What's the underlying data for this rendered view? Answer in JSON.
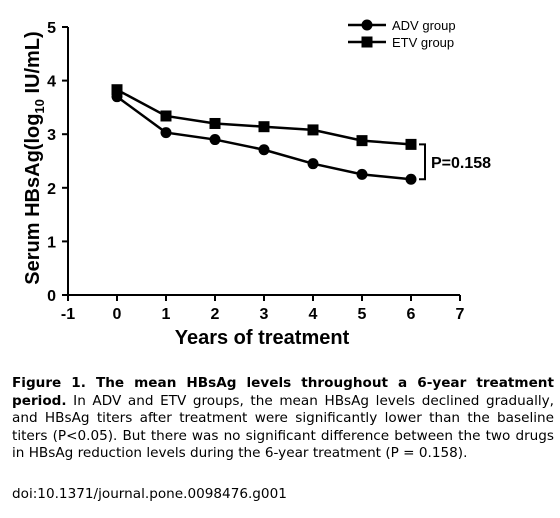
{
  "chart_data": {
    "type": "line",
    "xlabel": "Years of treatment",
    "ylabel_main": "Serum HBsAg(log",
    "ylabel_sub": "10",
    "ylabel_end": " IU/mL)",
    "xlim": [
      -1,
      7
    ],
    "ylim": [
      0,
      5
    ],
    "x_ticks": [
      -1,
      0,
      1,
      2,
      3,
      4,
      5,
      6,
      7
    ],
    "y_ticks": [
      0,
      1,
      2,
      3,
      4,
      5
    ],
    "x": [
      0,
      1,
      2,
      3,
      4,
      5,
      6
    ],
    "series": [
      {
        "name": "ADV group",
        "marker": "circle",
        "values": [
          3.7,
          3.03,
          2.9,
          2.71,
          2.45,
          2.25,
          2.16
        ]
      },
      {
        "name": "ETV group",
        "marker": "square",
        "values": [
          3.83,
          3.34,
          3.2,
          3.14,
          3.08,
          2.88,
          2.81
        ]
      }
    ],
    "annotation": {
      "text": "P=0.158",
      "x": 6
    },
    "legend_position": "top-right",
    "grid": false
  },
  "caption": {
    "lead": "Figure 1. The mean HBsAg levels throughout a 6-year treatment period.",
    "body": " In ADV and ETV groups, the mean HBsAg levels declined gradually, and HBsAg titers after treatment were significantly lower than the baseline titers (P<0.05). But there was no significant difference between the two drugs in HBsAg reduction levels during the 6-year treatment (P = 0.158).",
    "doi": "doi:10.1371/journal.pone.0098476.g001"
  }
}
